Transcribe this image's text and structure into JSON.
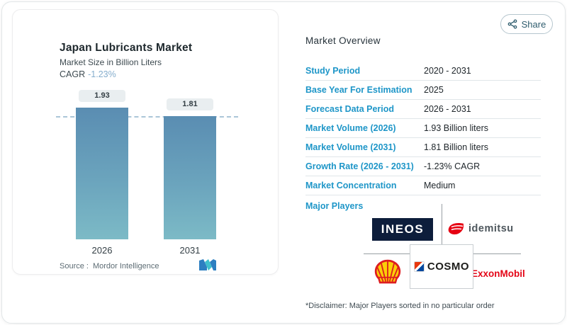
{
  "share": {
    "label": "Share"
  },
  "chart_card": {
    "title": "Japan Lubricants Market",
    "subtitle": "Market Size in Billion Liters",
    "cagr_label": "CAGR",
    "cagr_value": "-1.23%",
    "source_label": "Source :",
    "source_value": "Mordor Intelligence"
  },
  "chart_data": {
    "type": "bar",
    "title": "Japan Lubricants Market",
    "subtitle": "Market Size in Billion Liters",
    "cagr": "-1.23%",
    "categories": [
      "2026",
      "2031"
    ],
    "values": [
      1.93,
      1.81
    ],
    "bar_labels": [
      "1.93",
      "1.81"
    ],
    "ylabel": "Billion Liters",
    "ylim": [
      0,
      1.93
    ],
    "reference_line": 1.81,
    "grid": false,
    "legend": false
  },
  "overview": {
    "title": "Market Overview",
    "rows": [
      {
        "label": "Study Period",
        "value": "2020 - 2031"
      },
      {
        "label": "Base Year For Estimation",
        "value": "2025"
      },
      {
        "label": "Forecast Data Period",
        "value": "2026 - 2031"
      },
      {
        "label": "Market Volume (2026)",
        "value": "1.93 Billion liters"
      },
      {
        "label": "Market Volume (2031)",
        "value": "1.81 Billion liters"
      },
      {
        "label": "Growth Rate (2026 - 2031)",
        "value": "-1.23% CAGR"
      },
      {
        "label": "Market Concentration",
        "value": "Medium"
      }
    ],
    "major_players_label": "Major Players",
    "disclaimer": "*Disclaimer: Major Players sorted in no particular order"
  },
  "logos": {
    "ineos": "INEOS",
    "idemitsu": "idemitsu",
    "shell": "Shell",
    "cosmo": "COSMO",
    "exxonmobil": "ExxonMobil"
  },
  "colors": {
    "label_blue": "#1e96c8",
    "cagr_light_blue": "#86aecd",
    "bar_top": "#5a8db2",
    "bar_bottom": "#7cbac6",
    "ineos_navy": "#0d1d3b",
    "idemitsu_red": "#e60012",
    "exxon_red": "#e40617",
    "shell_yellow": "#fbce07",
    "shell_red": "#dd1d21",
    "cosmo_red": "#e8380d",
    "cosmo_blue": "#00479d",
    "mordor_blue": "#2d7fc1",
    "mordor_teal": "#3fc0cd"
  }
}
